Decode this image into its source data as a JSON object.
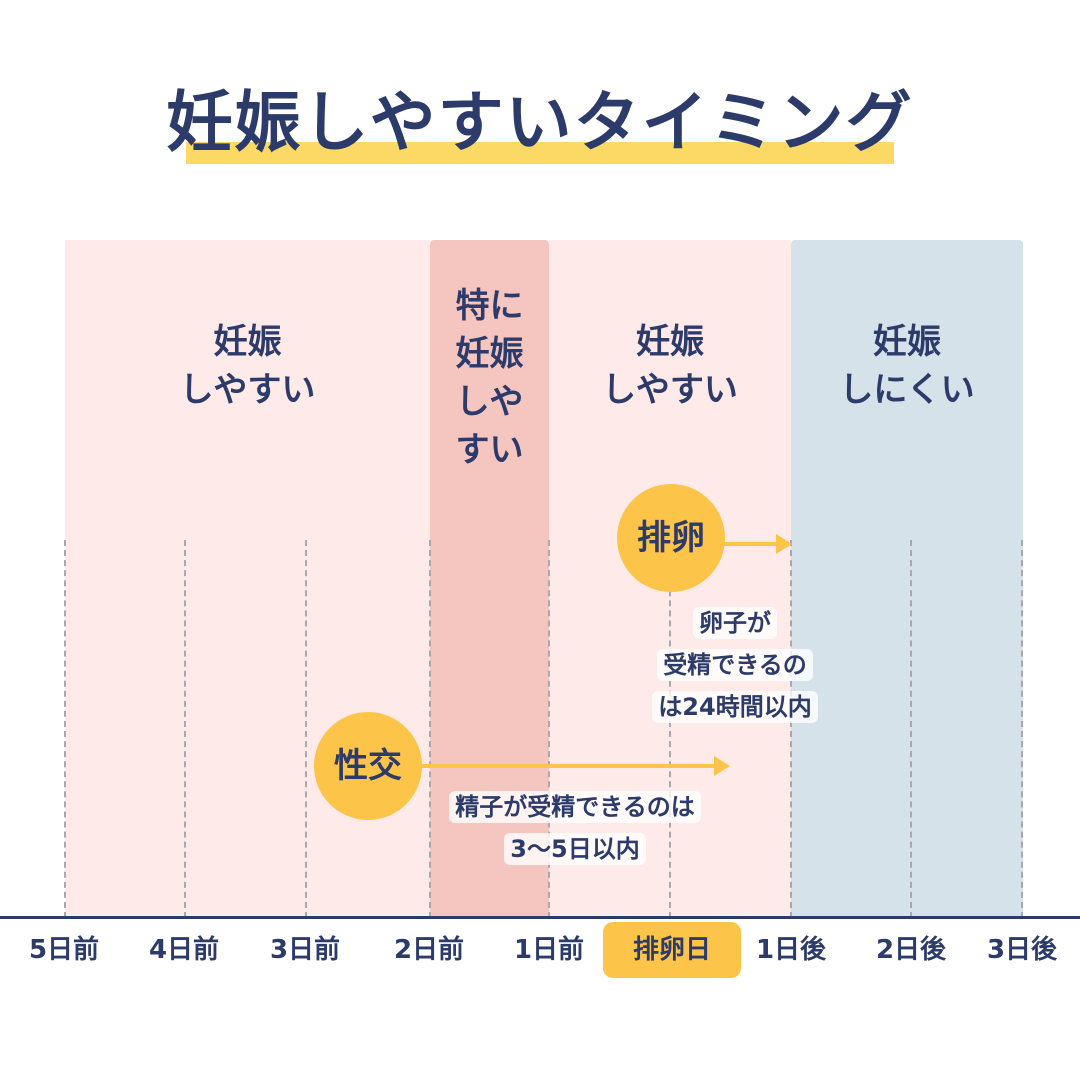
{
  "title": "妊娠しやすいタイミング",
  "zones": {
    "easy_before": "妊娠\nしやすい",
    "peak": "特に\n妊娠\nしや\nすい",
    "easy_after": "妊娠\nしやすい",
    "hard": "妊娠\nしにくい"
  },
  "ovulation": {
    "badge": "排卵",
    "note": "卵子が\n受精できるの\nは24時間以内"
  },
  "intercourse": {
    "badge": "性交",
    "note": "精子が受精できるのは\n3〜5日以内"
  },
  "axis_ticks": [
    "5日前",
    "4日前",
    "3日前",
    "2日前",
    "1日前",
    "排卵日",
    "1日後",
    "2日後",
    "3日後"
  ],
  "colors": {
    "navy": "#2d3b6b",
    "zone_easy": "#feeae8",
    "zone_peak": "#f4c6bf",
    "zone_hard": "#d5e2ea",
    "accent_yellow": "#fcc54a"
  }
}
